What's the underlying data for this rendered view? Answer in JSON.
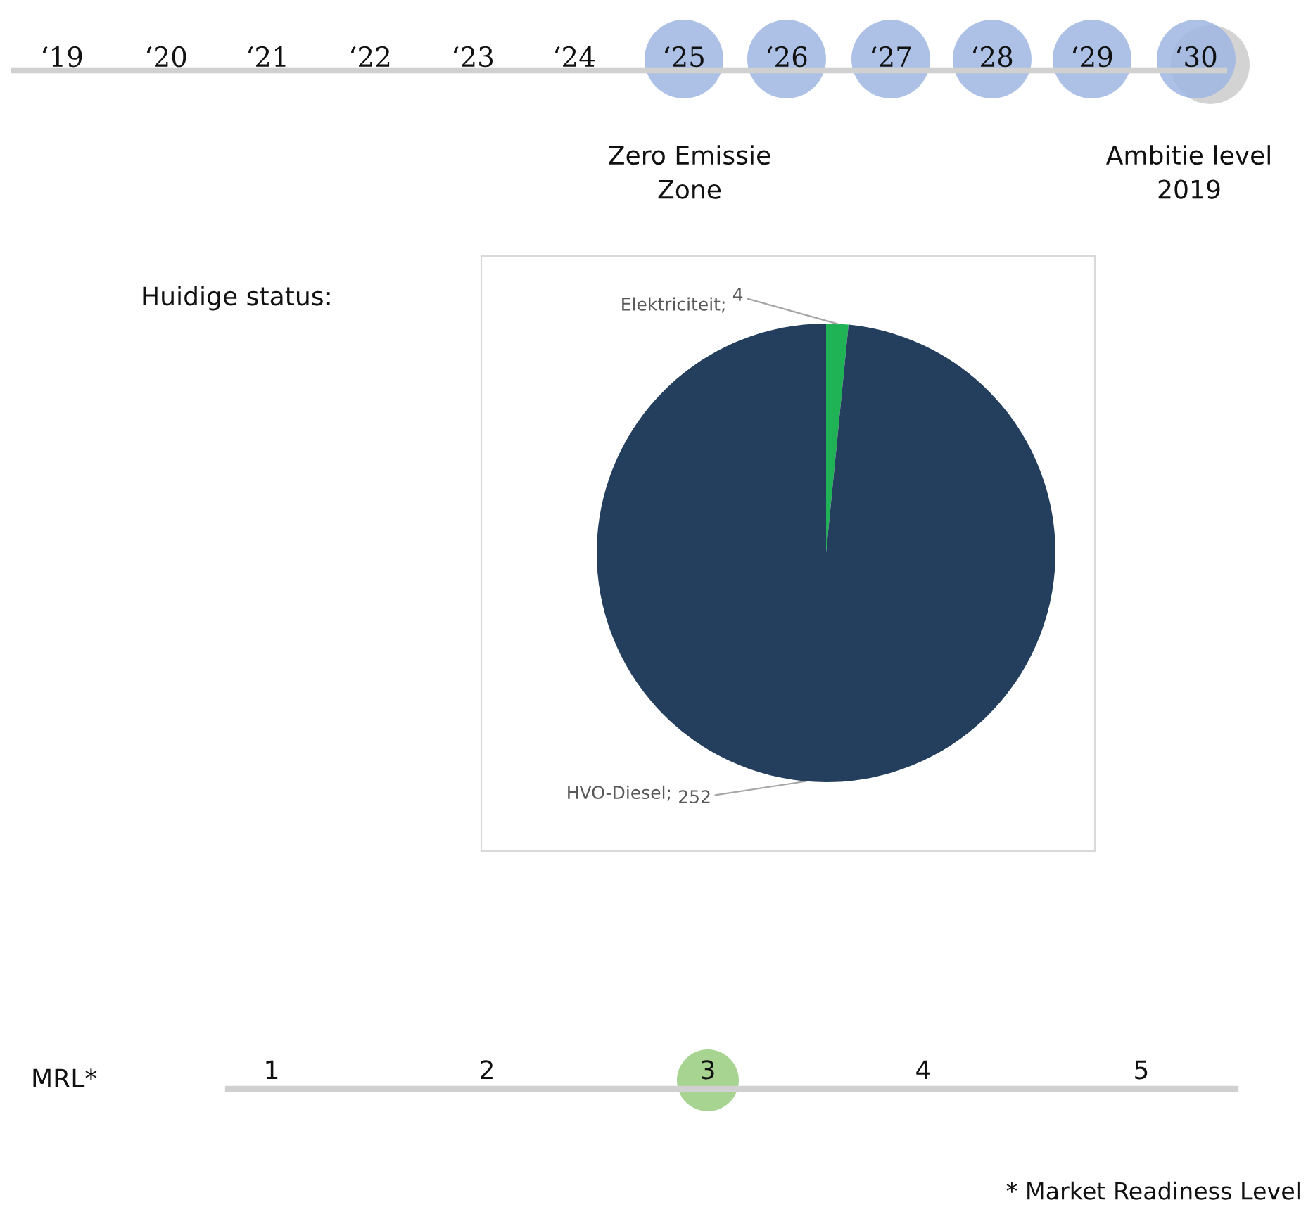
{
  "chart_data": {
    "type": "pie",
    "categories": [
      "Elektriciteit",
      "HVO-Diesel"
    ],
    "values": [
      4,
      252
    ],
    "colors": [
      "#1fb356",
      "#243f5e"
    ],
    "data_labels": true,
    "legend": false,
    "annotations": [
      "‘19",
      "‘20",
      "‘21",
      "‘22",
      "‘23",
      "‘24",
      "‘25",
      "‘26",
      "‘27",
      "‘28",
      "‘29",
      "‘30",
      "Zero Emissie\nZone",
      "Ambitie level\n2019",
      "Huidige status:",
      "MRL*",
      "1",
      "2",
      "3",
      "4",
      "5",
      "* Market Readiness Level",
      ";",
      ";"
    ]
  }
}
